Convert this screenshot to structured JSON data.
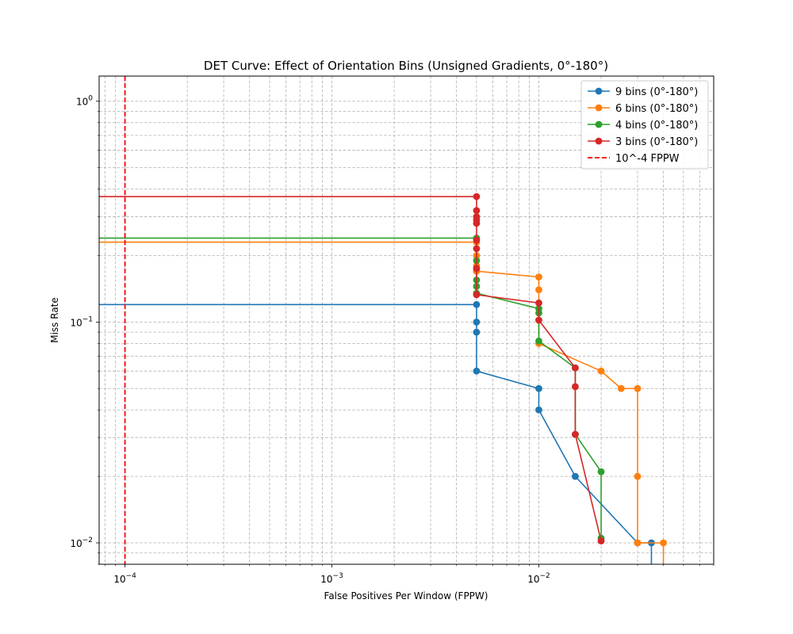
{
  "chart_data": {
    "type": "line",
    "title": "DET Curve: Effect of Orientation Bins (Unsigned Gradients, 0°-180°)",
    "xlabel": "False Positives Per Window (FPPW)",
    "ylabel": "Miss Rate",
    "xscale": "log",
    "yscale": "log",
    "xlim": [
      7.5e-05,
      0.07
    ],
    "ylim": [
      0.008,
      1.3
    ],
    "grid": true,
    "legend_position": "top-right",
    "x_ticks": [
      {
        "value": 0.0001,
        "base": "10",
        "exp": "−4"
      },
      {
        "value": 0.001,
        "base": "10",
        "exp": "−3"
      },
      {
        "value": 0.01,
        "base": "10",
        "exp": "−2"
      }
    ],
    "y_ticks": [
      {
        "value": 1,
        "base": "10",
        "exp": "0"
      },
      {
        "value": 0.1,
        "base": "10",
        "exp": "−1"
      },
      {
        "value": 0.01,
        "base": "10",
        "exp": "−2"
      }
    ],
    "series": [
      {
        "name": "9 bins (0°-180°)",
        "color": "#1f77b4",
        "x": [
          0.0,
          0.005,
          0.005,
          0.005,
          0.005,
          0.01,
          0.01,
          0.015,
          0.03,
          0.035,
          0.035
        ],
        "y": [
          0.12,
          0.12,
          0.1,
          0.09,
          0.06,
          0.05,
          0.04,
          0.02,
          0.01,
          0.01,
          0.0
        ],
        "marker_mask": [
          false,
          true,
          true,
          true,
          true,
          true,
          true,
          true,
          true,
          true,
          false
        ]
      },
      {
        "name": "6 bins (0°-180°)",
        "color": "#ff7f0e",
        "x": [
          0.0,
          0.005,
          0.005,
          0.005,
          0.005,
          0.005,
          0.01,
          0.01,
          0.01,
          0.02,
          0.025,
          0.03,
          0.03,
          0.03,
          0.04,
          0.04
        ],
        "y": [
          0.23,
          0.23,
          0.2,
          0.18,
          0.17,
          0.17,
          0.16,
          0.14,
          0.08,
          0.06,
          0.05,
          0.05,
          0.02,
          0.01,
          0.01,
          0.0
        ],
        "marker_mask": [
          false,
          true,
          true,
          true,
          true,
          true,
          true,
          true,
          true,
          true,
          true,
          true,
          true,
          true,
          true,
          false
        ]
      },
      {
        "name": "4 bins (0°-180°)",
        "color": "#2ca02c",
        "x": [
          0.0,
          0.005,
          0.005,
          0.005,
          0.005,
          0.005,
          0.01,
          0.01,
          0.01,
          0.015,
          0.015,
          0.02,
          0.02
        ],
        "y": [
          0.24,
          0.24,
          0.19,
          0.155,
          0.145,
          0.135,
          0.115,
          0.11,
          0.082,
          0.062,
          0.031,
          0.021,
          0.0105
        ],
        "marker_mask": [
          false,
          true,
          true,
          true,
          true,
          true,
          true,
          true,
          true,
          true,
          true,
          true,
          true
        ]
      },
      {
        "name": "3 bins (0°-180°)",
        "color": "#d62728",
        "x": [
          0.0,
          0.005,
          0.005,
          0.005,
          0.005,
          0.005,
          0.005,
          0.005,
          0.005,
          0.005,
          0.01,
          0.01,
          0.015,
          0.015,
          0.015,
          0.02
        ],
        "y": [
          0.37,
          0.37,
          0.32,
          0.3,
          0.29,
          0.28,
          0.235,
          0.215,
          0.175,
          0.133,
          0.122,
          0.102,
          0.062,
          0.051,
          0.031,
          0.0102
        ],
        "marker_mask": [
          false,
          true,
          true,
          true,
          true,
          true,
          true,
          true,
          true,
          true,
          true,
          true,
          true,
          true,
          true,
          true
        ]
      },
      {
        "name": "10^-4 FPPW",
        "color": "#ff0000",
        "style": "dashed",
        "vline_x": 0.0001
      }
    ]
  }
}
